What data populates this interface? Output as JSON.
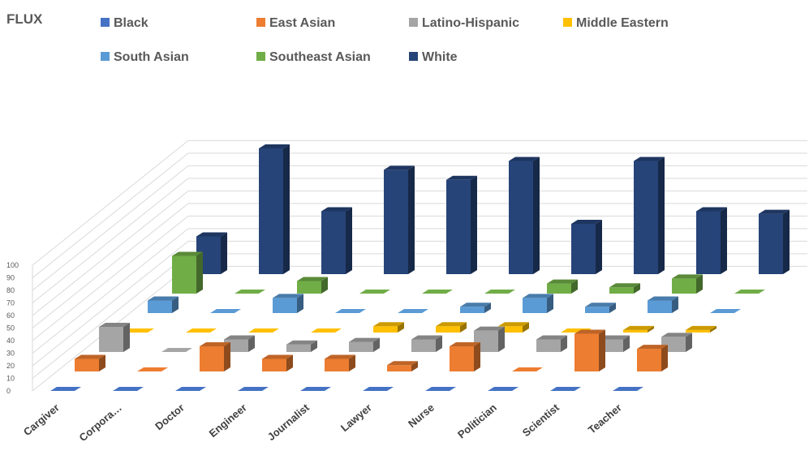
{
  "chart_data": {
    "type": "bar",
    "subtype": "3d-column",
    "title": "FLUX",
    "categories": [
      "Cargiver",
      "Corpora…",
      "Doctor",
      "Engineer",
      "Journalist",
      "Lawyer",
      "Nurse",
      "Politician",
      "Scientist",
      "Teacher"
    ],
    "ylim": [
      0,
      100
    ],
    "yticks": [
      0,
      10,
      20,
      30,
      40,
      50,
      60,
      70,
      80,
      90,
      100
    ],
    "legend_position": "top",
    "grid": true,
    "series": [
      {
        "name": "Black",
        "color": "#4472c4",
        "values": [
          0,
          0,
          0,
          0,
          0,
          0,
          0,
          0,
          0,
          0
        ]
      },
      {
        "name": "East Asian",
        "color": "#ed7d31",
        "values": [
          10,
          0,
          20,
          10,
          10,
          5,
          20,
          0,
          30,
          18
        ]
      },
      {
        "name": "Latino-Hispanic",
        "color": "#a5a5a5",
        "values": [
          20,
          0,
          10,
          6,
          8,
          10,
          17,
          10,
          10,
          12
        ]
      },
      {
        "name": "Middle Eastern",
        "color": "#ffc000",
        "values": [
          0,
          0,
          0,
          0,
          5,
          5,
          5,
          0,
          2,
          2
        ]
      },
      {
        "name": "South Asian",
        "color": "#5b9bd5",
        "values": [
          10,
          0,
          12,
          0,
          0,
          5,
          12,
          5,
          10,
          0
        ]
      },
      {
        "name": "Southeast Asian",
        "color": "#70ad47",
        "values": [
          30,
          0,
          10,
          0,
          0,
          0,
          8,
          5,
          12,
          0
        ]
      },
      {
        "name": "White",
        "color": "#264478",
        "values": [
          30,
          100,
          50,
          83,
          75,
          90,
          40,
          90,
          50,
          48
        ]
      }
    ]
  }
}
